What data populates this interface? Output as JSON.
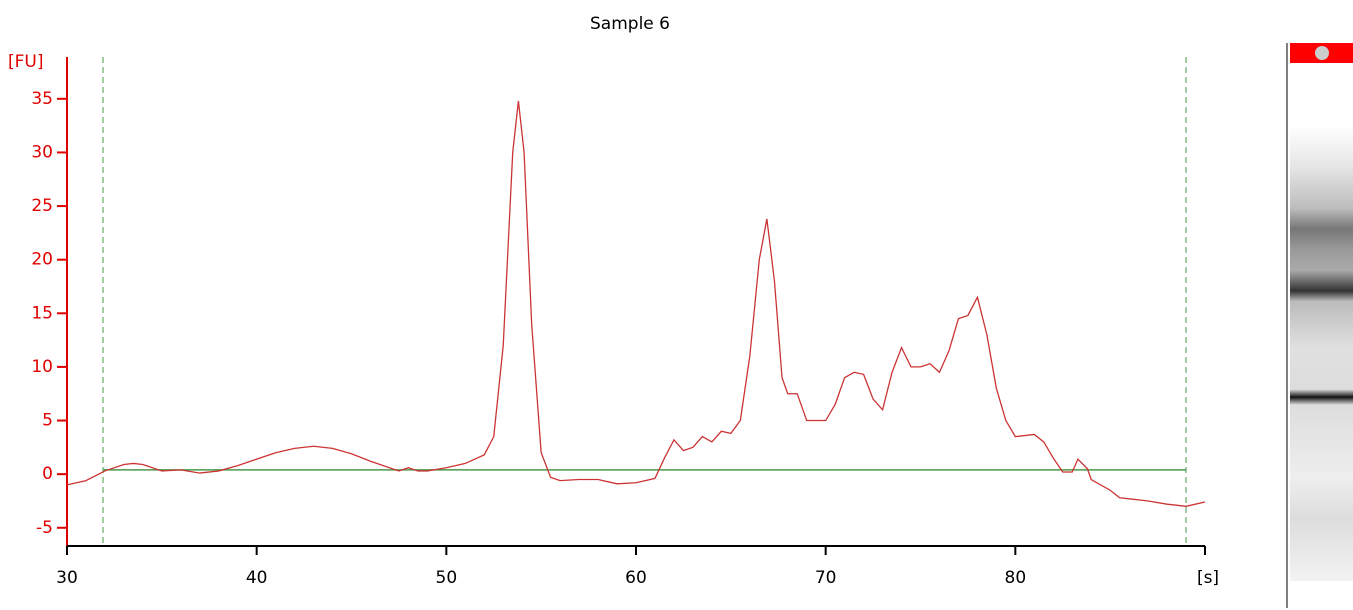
{
  "chart_data": {
    "type": "line",
    "title": "Sample 6",
    "y_label": "[FU]",
    "x_label": "[s]",
    "x": [
      30,
      31,
      32,
      33,
      33.5,
      34,
      35,
      36,
      37,
      38,
      39,
      40,
      41,
      42,
      43,
      44,
      45,
      46,
      47,
      47.5,
      48,
      48.5,
      49,
      50,
      51,
      52,
      52.5,
      53,
      53.5,
      53.8,
      54.1,
      54.5,
      55,
      55.5,
      56,
      57,
      58,
      59,
      60,
      61,
      61.5,
      62,
      62.5,
      63,
      63.5,
      64,
      64.5,
      65,
      65.5,
      66,
      66.5,
      66.9,
      67.3,
      67.7,
      68,
      68.5,
      69,
      69.5,
      70,
      70.5,
      71,
      71.5,
      72,
      72.5,
      73,
      73.5,
      74,
      74.5,
      75,
      75.5,
      76,
      76.5,
      77,
      77.5,
      78,
      78.5,
      79,
      79.5,
      80,
      81,
      81.5,
      82,
      82.5,
      83,
      83.3,
      83.8,
      84,
      85,
      85.5,
      86,
      87,
      88,
      89,
      90
    ],
    "series": [
      {
        "name": "Sample 6",
        "color": "#cc3333",
        "values": [
          -1.0,
          -0.6,
          0.3,
          0.9,
          1.0,
          0.9,
          0.3,
          0.4,
          0.1,
          0.3,
          0.8,
          1.4,
          2.0,
          2.4,
          2.6,
          2.4,
          1.9,
          1.2,
          0.6,
          0.3,
          0.6,
          0.3,
          0.3,
          0.6,
          1.0,
          1.8,
          3.5,
          12,
          30,
          34.8,
          30,
          14,
          2,
          -0.3,
          -0.6,
          -0.5,
          -0.5,
          -0.9,
          -0.8,
          -0.4,
          1.5,
          3.2,
          2.2,
          2.5,
          3.5,
          3.0,
          4.0,
          3.8,
          5.0,
          11,
          20,
          23.8,
          18,
          9,
          7.5,
          7.5,
          5.0,
          5.0,
          5.0,
          6.5,
          9.0,
          9.5,
          9.3,
          7.0,
          6.0,
          9.5,
          11.8,
          10.0,
          10.0,
          10.3,
          9.5,
          11.5,
          14.5,
          14.8,
          16.5,
          13,
          8,
          5,
          3.5,
          3.7,
          3.0,
          1.5,
          0.2,
          0.2,
          1.4,
          0.5,
          -0.5,
          -1.5,
          -2.2,
          -2.3,
          -2.5,
          -2.8,
          -3.0,
          -2.6
        ]
      }
    ],
    "xlim": [
      30,
      90
    ],
    "xticks": [
      30,
      40,
      50,
      60,
      70,
      80
    ],
    "ylim": [
      -6.7,
      38.9
    ],
    "yticks": [
      -5,
      0,
      5,
      10,
      15,
      20,
      25,
      30,
      35
    ],
    "markers": [
      31.9,
      89
    ],
    "baseline": 0.4,
    "marker_color": "#4a9a4a"
  }
}
